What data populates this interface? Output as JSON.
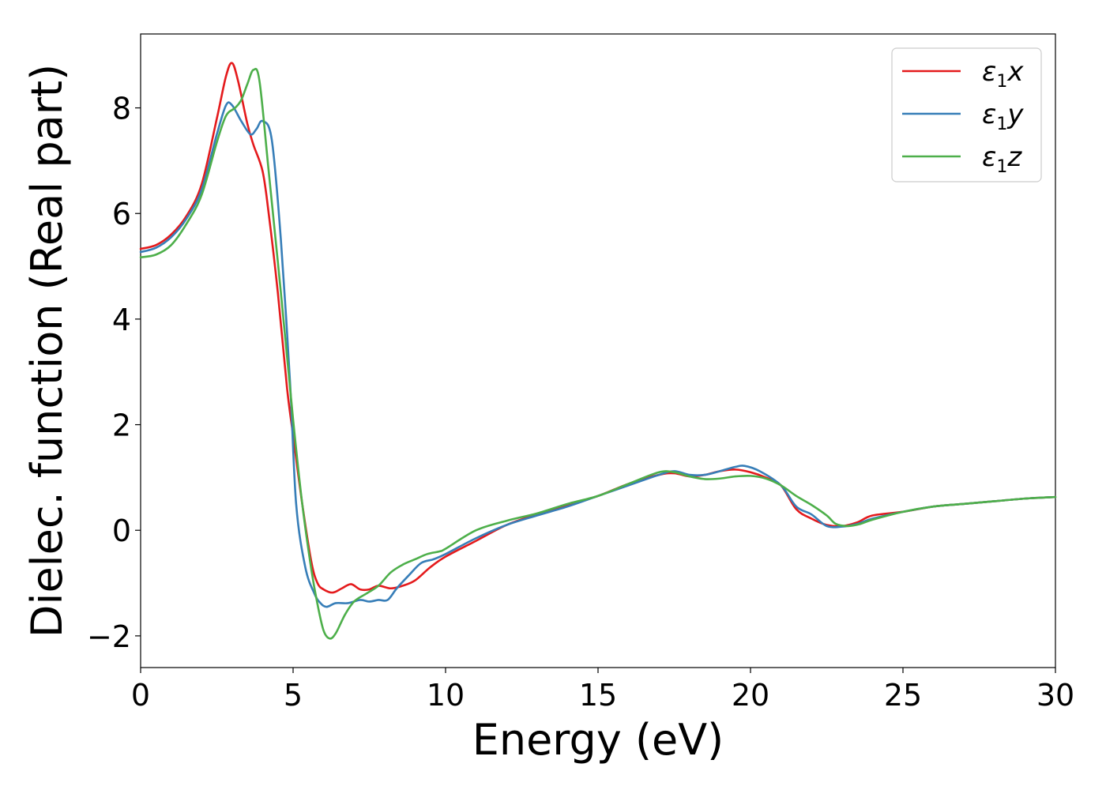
{
  "chart_data": {
    "type": "line",
    "xlabel": "Energy (eV)",
    "ylabel": "Dielec. function (Real part)",
    "xlim": [
      0,
      30
    ],
    "ylim": [
      -2.6,
      9.4
    ],
    "xticks": [
      0,
      5,
      10,
      15,
      20,
      25,
      30
    ],
    "xtick_labels": [
      "0",
      "5",
      "10",
      "15",
      "20",
      "25",
      "30"
    ],
    "yticks": [
      -2,
      0,
      2,
      4,
      6,
      8
    ],
    "ytick_labels": [
      "−2",
      "0",
      "2",
      "4",
      "6",
      "8"
    ],
    "grid": false,
    "legend_position": "top-right",
    "series": [
      {
        "name": "ε₁x",
        "legend_main": "ε",
        "legend_sub": "1",
        "legend_tail": "x",
        "color": "#e41a1c",
        "x": [
          0,
          0.5,
          1,
          1.5,
          2,
          2.5,
          2.8,
          3.0,
          3.2,
          3.5,
          3.7,
          4.0,
          4.2,
          4.5,
          4.8,
          5.0,
          5.3,
          5.6,
          5.8,
          6.0,
          6.3,
          6.6,
          6.9,
          7.2,
          7.5,
          7.8,
          8.2,
          8.6,
          9.0,
          9.5,
          10,
          11,
          12,
          13,
          14,
          15,
          16,
          17,
          17.5,
          18,
          18.5,
          19,
          19.5,
          20,
          20.5,
          21,
          21.5,
          22,
          22.5,
          23,
          23.5,
          24,
          25,
          26,
          27,
          28,
          29,
          30
        ],
        "y": [
          5.33,
          5.4,
          5.6,
          5.95,
          6.55,
          7.8,
          8.6,
          8.85,
          8.5,
          7.7,
          7.3,
          6.8,
          6.0,
          4.5,
          2.7,
          1.8,
          0.5,
          -0.6,
          -1.0,
          -1.12,
          -1.18,
          -1.1,
          -1.02,
          -1.12,
          -1.12,
          -1.05,
          -1.1,
          -1.05,
          -0.95,
          -0.7,
          -0.5,
          -0.2,
          0.1,
          0.3,
          0.48,
          0.65,
          0.88,
          1.05,
          1.08,
          1.02,
          1.05,
          1.12,
          1.15,
          1.1,
          1.0,
          0.85,
          0.4,
          0.22,
          0.1,
          0.08,
          0.15,
          0.28,
          0.35,
          0.45,
          0.5,
          0.55,
          0.6,
          0.63
        ]
      },
      {
        "name": "ε₁y",
        "legend_main": "ε",
        "legend_sub": "1",
        "legend_tail": "y",
        "color": "#377eb8",
        "x": [
          0,
          0.5,
          1,
          1.5,
          2,
          2.5,
          2.8,
          3.0,
          3.3,
          3.6,
          3.8,
          4.0,
          4.3,
          4.6,
          4.9,
          5.1,
          5.4,
          5.7,
          5.9,
          6.1,
          6.4,
          6.8,
          7.2,
          7.5,
          7.8,
          8.1,
          8.4,
          8.8,
          9.2,
          9.6,
          10,
          11,
          12,
          13,
          14,
          15,
          16,
          17,
          17.5,
          18,
          18.5,
          19,
          19.5,
          19.8,
          20.3,
          21,
          21.5,
          22,
          22.5,
          23,
          23.5,
          24,
          25,
          26,
          27,
          28,
          29,
          30
        ],
        "y": [
          5.27,
          5.35,
          5.55,
          5.9,
          6.45,
          7.5,
          8.05,
          8.05,
          7.75,
          7.5,
          7.6,
          7.75,
          7.4,
          5.5,
          2.8,
          0.5,
          -0.7,
          -1.2,
          -1.38,
          -1.45,
          -1.38,
          -1.38,
          -1.32,
          -1.35,
          -1.32,
          -1.32,
          -1.1,
          -0.85,
          -0.62,
          -0.55,
          -0.45,
          -0.15,
          0.1,
          0.28,
          0.45,
          0.65,
          0.85,
          1.05,
          1.12,
          1.05,
          1.05,
          1.12,
          1.2,
          1.22,
          1.12,
          0.85,
          0.45,
          0.3,
          0.08,
          0.07,
          0.12,
          0.22,
          0.35,
          0.45,
          0.5,
          0.55,
          0.6,
          0.63
        ]
      },
      {
        "name": "ε₁z",
        "legend_main": "ε",
        "legend_sub": "1",
        "legend_tail": "z",
        "color": "#4daf4a",
        "x": [
          0,
          0.5,
          1,
          1.5,
          2,
          2.5,
          2.8,
          3.1,
          3.3,
          3.5,
          3.7,
          3.9,
          4.2,
          4.6,
          5.0,
          5.3,
          5.6,
          5.8,
          6.0,
          6.2,
          6.4,
          6.7,
          7.0,
          7.4,
          7.8,
          8.2,
          8.6,
          9.0,
          9.4,
          9.8,
          10,
          11,
          12,
          13,
          14,
          15,
          16,
          17,
          17.5,
          18,
          18.5,
          19,
          19.5,
          20,
          20.5,
          21,
          21.5,
          22,
          22.5,
          22.8,
          23.2,
          23.6,
          24,
          25,
          26,
          27,
          28,
          29,
          30
        ],
        "y": [
          5.17,
          5.22,
          5.4,
          5.8,
          6.35,
          7.35,
          7.85,
          8.0,
          8.15,
          8.45,
          8.72,
          8.5,
          6.8,
          4.5,
          2.1,
          0.5,
          -0.75,
          -1.4,
          -1.9,
          -2.05,
          -1.95,
          -1.6,
          -1.35,
          -1.2,
          -1.05,
          -0.8,
          -0.65,
          -0.55,
          -0.45,
          -0.4,
          -0.35,
          0.0,
          0.18,
          0.32,
          0.5,
          0.65,
          0.88,
          1.1,
          1.1,
          1.02,
          0.97,
          0.98,
          1.02,
          1.03,
          0.98,
          0.85,
          0.65,
          0.48,
          0.28,
          0.12,
          0.08,
          0.12,
          0.2,
          0.35,
          0.45,
          0.5,
          0.55,
          0.6,
          0.63
        ]
      }
    ]
  }
}
